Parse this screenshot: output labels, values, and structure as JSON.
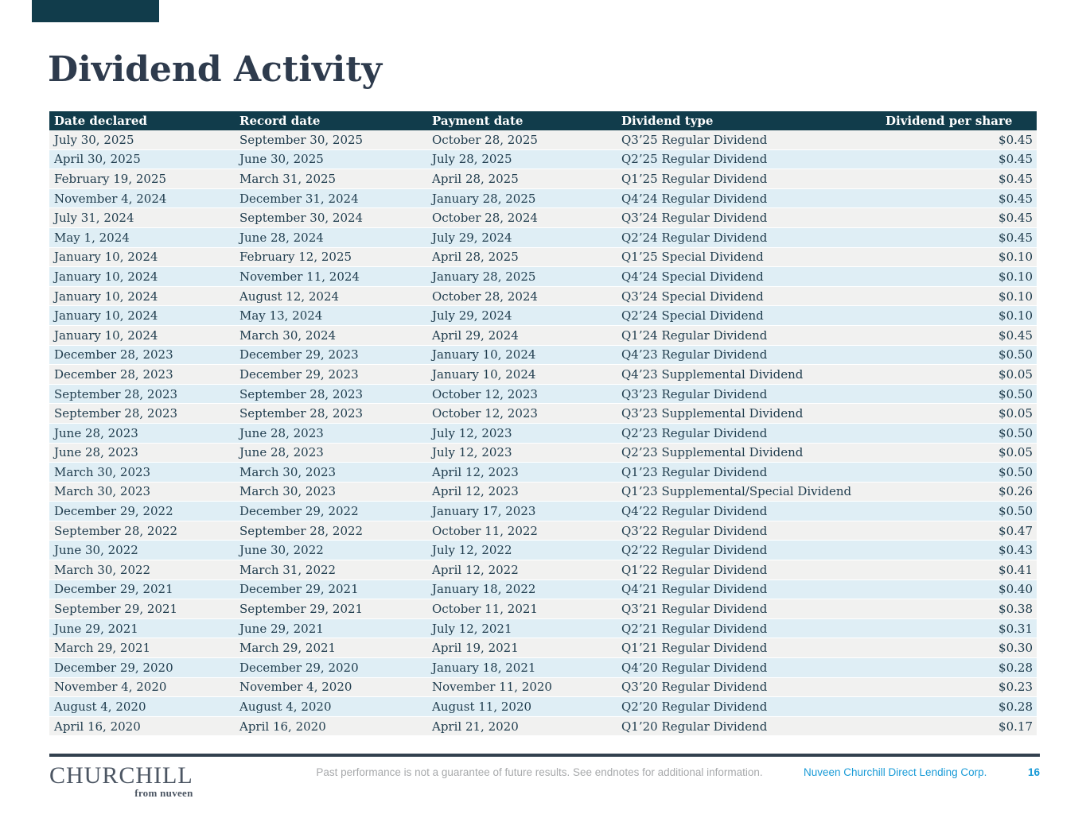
{
  "page": {
    "title": "Dividend Activity"
  },
  "colors": {
    "header_bg": "#113c4b",
    "row_gray": "#f1f1f0",
    "row_blue": "#dfeef5",
    "body_text": "#203d4e",
    "title_text": "#2e3b4d",
    "accent_blue": "#1a9bd7",
    "divider": "#32404e"
  },
  "table": {
    "columns": [
      "Date declared",
      "Record date",
      "Payment date",
      "Dividend type",
      "Dividend per share"
    ],
    "rows": [
      [
        "July 30, 2025",
        "September 30, 2025",
        "October 28, 2025",
        "Q3’25 Regular Dividend",
        "$0.45"
      ],
      [
        "April 30, 2025",
        "June 30, 2025",
        "July 28, 2025",
        "Q2’25 Regular Dividend",
        "$0.45"
      ],
      [
        "February 19, 2025",
        "March 31, 2025",
        "April 28, 2025",
        "Q1’25 Regular Dividend",
        "$0.45"
      ],
      [
        "November 4, 2024",
        "December 31, 2024",
        "January 28, 2025",
        "Q4’24 Regular Dividend",
        "$0.45"
      ],
      [
        "July 31, 2024",
        "September 30, 2024",
        "October 28, 2024",
        "Q3’24 Regular Dividend",
        "$0.45"
      ],
      [
        "May 1, 2024",
        "June 28, 2024",
        "July 29, 2024",
        "Q2’24 Regular Dividend",
        "$0.45"
      ],
      [
        "January 10, 2024",
        "February 12, 2025",
        "April 28, 2025",
        "Q1’25 Special Dividend",
        "$0.10"
      ],
      [
        "January 10, 2024",
        "November 11, 2024",
        "January 28, 2025",
        "Q4’24 Special Dividend",
        "$0.10"
      ],
      [
        "January 10, 2024",
        "August 12, 2024",
        "October 28, 2024",
        "Q3’24 Special Dividend",
        "$0.10"
      ],
      [
        "January 10, 2024",
        "May 13, 2024",
        "July 29, 2024",
        "Q2’24 Special Dividend",
        "$0.10"
      ],
      [
        "January 10, 2024",
        "March 30, 2024",
        "April 29, 2024",
        "Q1’24 Regular Dividend",
        "$0.45"
      ],
      [
        "December 28, 2023",
        "December 29, 2023",
        "January 10, 2024",
        "Q4’23 Regular Dividend",
        "$0.50"
      ],
      [
        "December 28, 2023",
        "December 29, 2023",
        "January 10, 2024",
        "Q4’23 Supplemental Dividend",
        "$0.05"
      ],
      [
        "September 28, 2023",
        "September 28, 2023",
        "October 12, 2023",
        "Q3’23 Regular Dividend",
        "$0.50"
      ],
      [
        "September 28, 2023",
        "September 28, 2023",
        "October 12, 2023",
        "Q3’23 Supplemental Dividend",
        "$0.05"
      ],
      [
        "June 28, 2023",
        "June 28, 2023",
        "July 12, 2023",
        "Q2’23 Regular Dividend",
        "$0.50"
      ],
      [
        "June 28, 2023",
        "June 28, 2023",
        "July 12, 2023",
        "Q2’23 Supplemental Dividend",
        "$0.05"
      ],
      [
        "March 30, 2023",
        "March 30, 2023",
        "April 12, 2023",
        "Q1’23 Regular Dividend",
        "$0.50"
      ],
      [
        "March 30, 2023",
        "March 30, 2023",
        "April 12, 2023",
        "Q1’23 Supplemental/Special Dividend",
        "$0.26"
      ],
      [
        "December 29, 2022",
        "December 29, 2022",
        "January 17, 2023",
        "Q4’22 Regular Dividend",
        "$0.50"
      ],
      [
        "September 28, 2022",
        "September 28, 2022",
        "October 11, 2022",
        "Q3’22 Regular Dividend",
        "$0.47"
      ],
      [
        "June 30, 2022",
        "June 30, 2022",
        "July 12, 2022",
        "Q2’22 Regular Dividend",
        "$0.43"
      ],
      [
        "March 30, 2022",
        "March 31, 2022",
        "April 12, 2022",
        "Q1’22 Regular Dividend",
        "$0.41"
      ],
      [
        "December 29, 2021",
        "December 29, 2021",
        "January 18, 2022",
        "Q4’21 Regular Dividend",
        "$0.40"
      ],
      [
        "September 29, 2021",
        "September 29, 2021",
        "October 11, 2021",
        "Q3’21 Regular Dividend",
        "$0.38"
      ],
      [
        "June 29, 2021",
        "June 29, 2021",
        "July 12, 2021",
        "Q2’21 Regular Dividend",
        "$0.31"
      ],
      [
        "March 29, 2021",
        "March 29, 2021",
        "April 19, 2021",
        "Q1’21 Regular Dividend",
        "$0.30"
      ],
      [
        "December 29, 2020",
        "December 29, 2020",
        "January 18, 2021",
        "Q4’20 Regular Dividend",
        "$0.28"
      ],
      [
        "November 4, 2020",
        "November 4, 2020",
        "November 11, 2020",
        "Q3’20 Regular Dividend",
        "$0.23"
      ],
      [
        "August 4, 2020",
        "August 4, 2020",
        "August 11, 2020",
        "Q2’20 Regular Dividend",
        "$0.28"
      ],
      [
        "April 16, 2020",
        "April 16, 2020",
        "April 21, 2020",
        "Q1’20 Regular Dividend",
        "$0.17"
      ]
    ]
  },
  "footer": {
    "logo_primary": "CHURCHILL",
    "logo_secondary": "from nuveen",
    "disclaimer": "Past performance is not a guarantee of future results. See endnotes for additional information.",
    "company": "Nuveen Churchill Direct Lending Corp.",
    "page_number": "16"
  }
}
